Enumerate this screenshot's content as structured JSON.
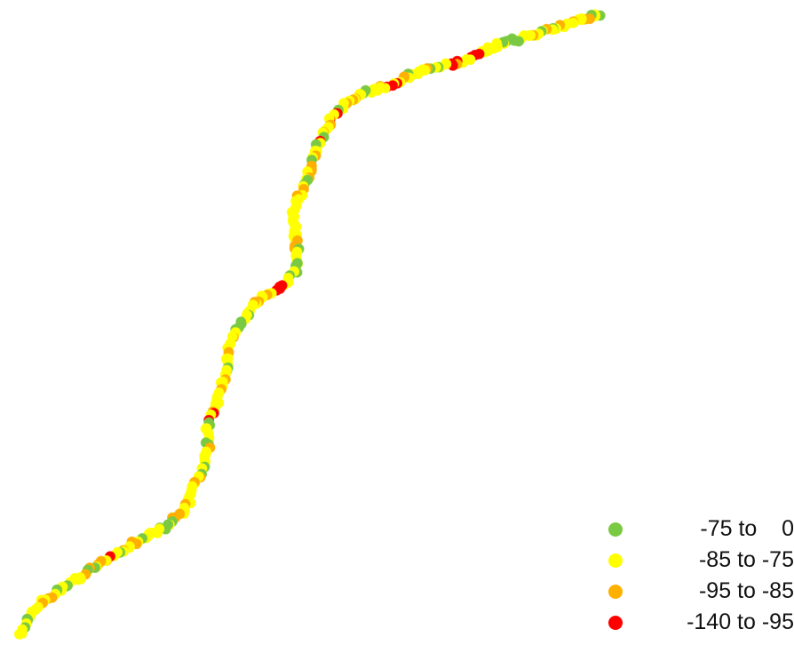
{
  "map": {
    "background": "#ffffff",
    "feature": "signal-strength-track"
  },
  "legend": {
    "items": [
      {
        "label": "-75 to    0",
        "color": "#7ac943",
        "range": [
          -75,
          0
        ]
      },
      {
        "label": "-85 to -75",
        "color": "#ffff00",
        "range": [
          -85,
          -75
        ]
      },
      {
        "label": "-95 to -85",
        "color": "#ffb000",
        "range": [
          -95,
          -85
        ]
      },
      {
        "label": "-140 to -95",
        "color": "#ff0000",
        "range": [
          -140,
          -95
        ]
      }
    ]
  }
}
